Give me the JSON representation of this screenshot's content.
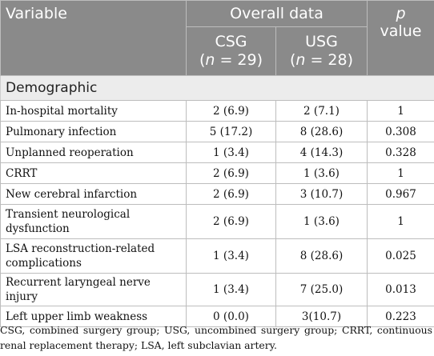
{
  "header": {
    "variable": "Variable",
    "overall": "Overall data",
    "p_letter": "p",
    "p_rest": "value",
    "csg_label": "CSG",
    "csg_n_letter": "n",
    "csg_n_rest": " = 29)",
    "usg_label": "USG",
    "usg_n_letter": "n",
    "usg_n_rest": " = 28)"
  },
  "section": "Demographic",
  "rows": [
    {
      "variable": "In-hospital mortality",
      "csg": "2 (6.9)",
      "usg": "2 (7.1)",
      "p": "1"
    },
    {
      "variable": "Pulmonary infection",
      "csg": "5 (17.2)",
      "usg": "8 (28.6)",
      "p": "0.308"
    },
    {
      "variable": "Unplanned reoperation",
      "csg": "1 (3.4)",
      "usg": "4 (14.3)",
      "p": "0.328"
    },
    {
      "variable": "CRRT",
      "csg": "2 (6.9)",
      "usg": "1 (3.6)",
      "p": "1"
    },
    {
      "variable": "New cerebral infarction",
      "csg": "2 (6.9)",
      "usg": "3 (10.7)",
      "p": "0.967"
    },
    {
      "variable": "Transient neurological dysfunction",
      "csg": "2 (6.9)",
      "usg": "1 (3.6)",
      "p": "1"
    },
    {
      "variable": "LSA reconstruction-related complications",
      "csg": "1 (3.4)",
      "usg": "8 (28.6)",
      "p": "0.025"
    },
    {
      "variable": "Recurrent laryngeal nerve injury",
      "csg": "1 (3.4)",
      "usg": "7 (25.0)",
      "p": "0.013"
    },
    {
      "variable": "Left upper limb weakness",
      "csg": "0 (0.0)",
      "usg": "3(10.7)",
      "p": "0.223"
    }
  ],
  "footnote": "CSG, combined surgery group; USG, uncombined surgery group; CRRT, continuous renal replacement therapy; LSA, left subclavian artery."
}
